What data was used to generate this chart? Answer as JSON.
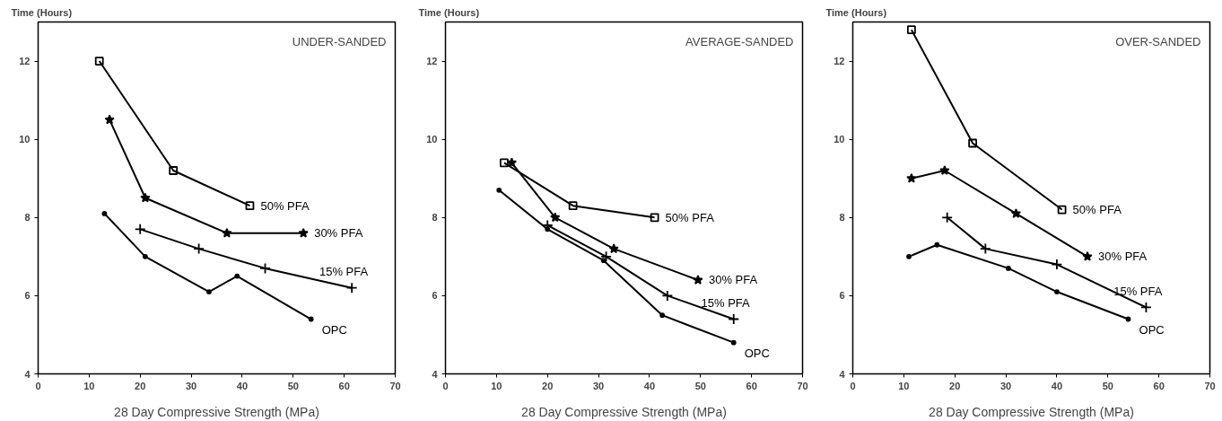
{
  "chart_data": [
    {
      "type": "line",
      "title": "UNDER-SANDED",
      "xlabel": "28 Day Compressive Strength (MPa)",
      "ylabel": "Time (Hours)",
      "xlim": [
        0,
        70
      ],
      "ylim": [
        4,
        13
      ],
      "xticks": [
        0,
        10,
        20,
        30,
        40,
        50,
        60,
        70
      ],
      "yticks": [
        4,
        6,
        8,
        10,
        12
      ],
      "grid": false,
      "legend": false,
      "series": [
        {
          "name": "50% PFA",
          "color": "#000000",
          "marker": "square",
          "x": [
            12,
            26.5,
            41.5
          ],
          "values": [
            12,
            9.2,
            8.3
          ]
        },
        {
          "name": "30% PFA",
          "color": "#000000",
          "marker": "star",
          "x": [
            14,
            21,
            37,
            52
          ],
          "values": [
            10.5,
            8.5,
            7.6,
            7.6
          ]
        },
        {
          "name": "15% PFA",
          "color": "#000000",
          "marker": "cross",
          "x": [
            20,
            31.5,
            44.5,
            61.5
          ],
          "values": [
            7.7,
            7.2,
            6.7,
            6.2
          ]
        },
        {
          "name": "OPC",
          "color": "#000000",
          "marker": "circle",
          "x": [
            13,
            21,
            33.5,
            39,
            53.5
          ],
          "values": [
            8.1,
            7.0,
            6.1,
            6.5,
            5.4
          ]
        }
      ]
    },
    {
      "type": "line",
      "title": "AVERAGE-SANDED",
      "xlabel": "28 Day Compressive Strength (MPa)",
      "ylabel": "Time (Hours)",
      "xlim": [
        0,
        70
      ],
      "ylim": [
        4,
        13
      ],
      "xticks": [
        0,
        10,
        20,
        30,
        40,
        50,
        60,
        70
      ],
      "yticks": [
        4,
        6,
        8,
        10,
        12
      ],
      "grid": false,
      "legend": false,
      "series": [
        {
          "name": "50% PFA",
          "color": "#000000",
          "marker": "square",
          "x": [
            11.5,
            25,
            41
          ],
          "values": [
            9.4,
            8.3,
            8.0
          ]
        },
        {
          "name": "30% PFA",
          "color": "#000000",
          "marker": "star",
          "x": [
            13,
            21.5,
            33,
            49.5
          ],
          "values": [
            9.4,
            8.0,
            7.2,
            6.4
          ]
        },
        {
          "name": "15% PFA",
          "color": "#000000",
          "marker": "cross",
          "x": [
            20,
            31.5,
            43.5,
            56.5
          ],
          "values": [
            7.8,
            7.0,
            6.0,
            5.4
          ]
        },
        {
          "name": "OPC",
          "color": "#000000",
          "marker": "circle",
          "x": [
            10.5,
            20,
            31,
            42.5,
            56.5
          ],
          "values": [
            8.7,
            7.7,
            6.9,
            5.5,
            4.8
          ]
        }
      ]
    },
    {
      "type": "line",
      "title": "OVER-SANDED",
      "xlabel": "28 Day Compressive Strength (MPa)",
      "ylabel": "Time (Hours)",
      "xlim": [
        0,
        70
      ],
      "ylim": [
        4,
        13
      ],
      "xticks": [
        0,
        10,
        20,
        30,
        40,
        50,
        60,
        70
      ],
      "yticks": [
        4,
        6,
        8,
        10,
        12
      ],
      "grid": false,
      "legend": false,
      "series": [
        {
          "name": "50% PFA",
          "color": "#000000",
          "marker": "square",
          "x": [
            11.5,
            23.5,
            41
          ],
          "values": [
            12.8,
            9.9,
            8.2
          ]
        },
        {
          "name": "30% PFA",
          "color": "#000000",
          "marker": "star",
          "x": [
            11.5,
            18,
            32,
            46
          ],
          "values": [
            9.0,
            9.2,
            8.1,
            7.0
          ]
        },
        {
          "name": "15% PFA",
          "color": "#000000",
          "marker": "cross",
          "x": [
            18.5,
            26,
            40,
            57.5
          ],
          "values": [
            8.0,
            7.2,
            6.8,
            5.7
          ]
        },
        {
          "name": "OPC",
          "color": "#000000",
          "marker": "circle",
          "x": [
            11,
            16.5,
            30.5,
            40,
            54
          ],
          "values": [
            7.0,
            7.3,
            6.7,
            6.1,
            5.4
          ]
        }
      ]
    }
  ]
}
